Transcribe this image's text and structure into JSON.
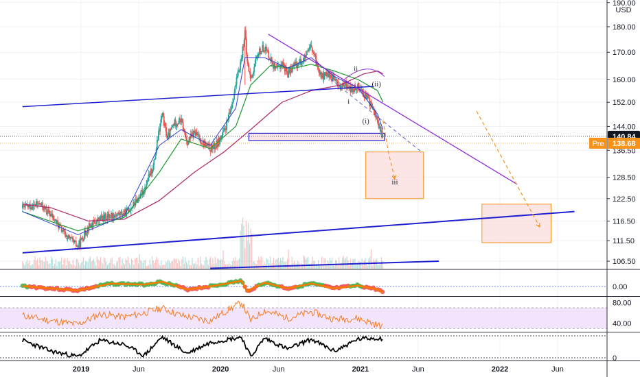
{
  "currency_label": "USD",
  "colors": {
    "up": "#26a69a",
    "down": "#ef5350",
    "trendline": "#1f1fcf",
    "downtrend": "#8e2bd6",
    "projection": "#f7931a",
    "box_fill": "#fbdcdc",
    "box_border": "#f7931a",
    "ema_fast": "#2f3fd0",
    "ema_mid": "#2e9e3e",
    "ema_slow": "#b0306e",
    "rsi": "#f57c1f",
    "rsi_band": "#f1e4fb",
    "current_price_bg": "#131722",
    "pre_bg": "#f7931a"
  },
  "chart_data": [
    {
      "type": "line",
      "panel": "price",
      "y_scale": "log",
      "ylim": [
        103,
        190
      ],
      "y_ticks": [
        "190.00",
        "180.00",
        "170.00",
        "160.00",
        "152.00",
        "144.00",
        "136.50",
        "128.50",
        "122.50",
        "116.50",
        "111.50",
        "106.50"
      ],
      "x_ticks": [
        "2019",
        "Jun",
        "2020",
        "Jun",
        "2021",
        "Jun",
        "2022",
        "Jun"
      ],
      "price_path": [
        [
          "2018-08-01",
          120
        ],
        [
          "2018-09-15",
          121
        ],
        [
          "2018-10-15",
          118
        ],
        [
          "2018-11-20",
          113
        ],
        [
          "2018-12-24",
          110
        ],
        [
          "2019-01-20",
          115
        ],
        [
          "2019-02-20",
          117
        ],
        [
          "2019-03-20",
          118
        ],
        [
          "2019-04-25",
          118.5
        ],
        [
          "2019-05-20",
          121
        ],
        [
          "2019-06-15",
          125
        ],
        [
          "2019-07-10",
          132
        ],
        [
          "2019-07-25",
          143
        ],
        [
          "2019-08-01",
          148
        ],
        [
          "2019-08-15",
          140
        ],
        [
          "2019-09-01",
          145
        ],
        [
          "2019-09-20",
          146
        ],
        [
          "2019-10-05",
          139
        ],
        [
          "2019-10-25",
          142
        ],
        [
          "2019-11-15",
          139
        ],
        [
          "2019-12-05",
          137
        ],
        [
          "2019-12-20",
          138
        ],
        [
          "2020-01-10",
          142
        ],
        [
          "2020-01-25",
          148
        ],
        [
          "2020-02-10",
          158
        ],
        [
          "2020-02-25",
          168
        ],
        [
          "2020-03-05",
          178
        ],
        [
          "2020-03-10",
          167
        ],
        [
          "2020-03-20",
          160
        ],
        [
          "2020-04-10",
          170
        ],
        [
          "2020-04-25",
          172
        ],
        [
          "2020-05-10",
          168
        ],
        [
          "2020-05-25",
          163
        ],
        [
          "2020-06-10",
          166
        ],
        [
          "2020-06-25",
          162
        ],
        [
          "2020-07-10",
          165
        ],
        [
          "2020-07-25",
          166
        ],
        [
          "2020-08-10",
          168
        ],
        [
          "2020-08-25",
          172
        ],
        [
          "2020-09-10",
          165
        ],
        [
          "2020-09-25",
          161
        ],
        [
          "2020-10-10",
          162
        ],
        [
          "2020-10-25",
          160
        ],
        [
          "2020-11-10",
          157
        ],
        [
          "2020-11-25",
          158
        ],
        [
          "2020-12-10",
          156
        ],
        [
          "2020-12-25",
          158
        ],
        [
          "2021-01-10",
          155
        ],
        [
          "2021-01-25",
          152
        ],
        [
          "2021-02-05",
          149
        ],
        [
          "2021-02-15",
          146
        ],
        [
          "2021-02-22",
          142
        ],
        [
          "2021-03-01",
          140.84
        ]
      ],
      "ema_fast": [
        [
          "2018-08-01",
          119
        ],
        [
          "2018-12-24",
          113
        ],
        [
          "2019-04-25",
          118
        ],
        [
          "2019-07-25",
          138
        ],
        [
          "2019-09-20",
          143
        ],
        [
          "2019-12-05",
          138
        ],
        [
          "2020-02-10",
          150
        ],
        [
          "2020-03-05",
          168
        ],
        [
          "2020-04-25",
          168
        ],
        [
          "2020-06-25",
          164
        ],
        [
          "2020-08-25",
          168
        ],
        [
          "2020-10-25",
          161
        ],
        [
          "2020-12-25",
          157
        ],
        [
          "2021-02-15",
          148
        ],
        [
          "2021-03-01",
          143
        ]
      ],
      "ema_mid": [
        [
          "2018-08-01",
          119
        ],
        [
          "2018-12-24",
          114
        ],
        [
          "2019-04-25",
          117.5
        ],
        [
          "2019-07-25",
          130
        ],
        [
          "2019-09-20",
          140
        ],
        [
          "2019-12-05",
          137
        ],
        [
          "2020-02-10",
          144
        ],
        [
          "2020-03-20",
          158
        ],
        [
          "2020-05-10",
          165
        ],
        [
          "2020-07-10",
          164
        ],
        [
          "2020-08-25",
          165.5
        ],
        [
          "2020-10-25",
          163
        ],
        [
          "2020-12-25",
          160
        ],
        [
          "2021-02-15",
          156
        ],
        [
          "2021-03-01",
          152
        ]
      ],
      "ema_slow": [
        [
          "2018-08-01",
          121
        ],
        [
          "2018-10-15",
          120
        ],
        [
          "2019-01-20",
          116.5
        ],
        [
          "2019-04-25",
          117
        ],
        [
          "2019-07-25",
          122
        ],
        [
          "2019-10-25",
          130
        ],
        [
          "2020-01-10",
          136
        ],
        [
          "2020-03-20",
          143
        ],
        [
          "2020-06-10",
          152
        ],
        [
          "2020-08-25",
          156
        ],
        [
          "2020-11-10",
          158
        ],
        [
          "2021-01-10",
          162
        ],
        [
          "2021-02-15",
          163
        ],
        [
          "2021-03-01",
          162
        ]
      ],
      "lines": [
        {
          "name": "support-upper",
          "points": [
            [
              "2018-08-01",
              150.5
            ],
            [
              "2021-02-05",
              157.5
            ]
          ]
        },
        {
          "name": "support-lower",
          "points": [
            [
              "2018-08-01",
              108.5
            ],
            [
              "2022-07-15",
              119
            ]
          ]
        },
        {
          "name": "volume-baseline",
          "points": [
            [
              "2019-12-05",
              104.8
            ],
            [
              "2021-07-25",
              106.5
            ]
          ]
        },
        {
          "name": "downtrend",
          "points": [
            [
              "2020-05-05",
              177
            ],
            [
              "2022-02-15",
              126.5
            ]
          ]
        },
        {
          "name": "dashed-channel",
          "points": [
            [
              "2020-10-15",
              160
            ],
            [
              "2021-06-10",
              136
            ]
          ]
        }
      ],
      "zones": [
        {
          "name": "support-zone",
          "from": "2020-03-15",
          "to": "2021-03-05",
          "low": 139.5,
          "high": 141.8
        },
        {
          "name": "target-zone-1",
          "from": "2021-01-15",
          "to": "2021-06-15",
          "low": 122.5,
          "high": 136
        },
        {
          "name": "target-zone-2",
          "from": "2021-11-15",
          "to": "2022-05-15",
          "low": 111,
          "high": 121
        }
      ],
      "projections": [
        {
          "name": "wave-iii-path",
          "points": [
            [
              "2021-03-01",
              146
            ],
            [
              "2021-03-15",
              136
            ],
            [
              "2021-04-01",
              128
            ]
          ]
        },
        {
          "name": "long-projection",
          "points": [
            [
              "2021-11-01",
              149
            ],
            [
              "2022-04-15",
              115
            ]
          ]
        }
      ],
      "wave_labels": [
        {
          "text": "ii",
          "date": "2020-12-20",
          "price": 163
        },
        {
          "text": "(ii)",
          "date": "2021-02-12",
          "price": 157.5
        },
        {
          "text": "i",
          "date": "2020-12-01",
          "price": 151.5
        },
        {
          "text": "(i)",
          "date": "2021-01-15",
          "price": 145
        },
        {
          "text": "iii",
          "date": "2021-04-01",
          "price": 126.5
        }
      ],
      "price_tags": [
        {
          "name": "current",
          "label": "140.84",
          "value": 140.84
        },
        {
          "name": "premarket",
          "prefix": "Pre",
          "label": "138.68",
          "value": 138.68
        }
      ]
    },
    {
      "type": "line",
      "panel": "oscillator",
      "y_ticks": [
        "0.00"
      ],
      "ylim": [
        -1,
        1
      ],
      "values": [
        [
          "2018-08-01",
          0.05
        ],
        [
          "2018-10-15",
          -0.2
        ],
        [
          "2018-12-24",
          -0.4
        ],
        [
          "2019-03-20",
          0.3
        ],
        [
          "2019-06-15",
          0.2
        ],
        [
          "2019-08-01",
          0.5
        ],
        [
          "2019-10-05",
          -0.3
        ],
        [
          "2019-12-20",
          0.1
        ],
        [
          "2020-02-25",
          0.6
        ],
        [
          "2020-03-10",
          -0.5
        ],
        [
          "2020-04-25",
          0.4
        ],
        [
          "2020-06-25",
          -0.2
        ],
        [
          "2020-08-25",
          0.3
        ],
        [
          "2020-10-25",
          -0.2
        ],
        [
          "2020-12-25",
          0.1
        ],
        [
          "2021-02-15",
          -0.3
        ],
        [
          "2021-03-01",
          -0.6
        ]
      ]
    },
    {
      "type": "line",
      "panel": "rsi",
      "y_ticks": [
        "80.00",
        "40.00"
      ],
      "ylim": [
        25,
        90
      ],
      "values": [
        [
          "2018-08-01",
          55
        ],
        [
          "2018-10-15",
          45
        ],
        [
          "2018-12-24",
          38
        ],
        [
          "2019-02-20",
          58
        ],
        [
          "2019-04-25",
          52
        ],
        [
          "2019-06-15",
          60
        ],
        [
          "2019-08-01",
          70
        ],
        [
          "2019-09-20",
          55
        ],
        [
          "2019-12-05",
          45
        ],
        [
          "2020-01-25",
          68
        ],
        [
          "2020-02-25",
          80
        ],
        [
          "2020-03-20",
          45
        ],
        [
          "2020-04-25",
          65
        ],
        [
          "2020-06-25",
          50
        ],
        [
          "2020-08-25",
          62
        ],
        [
          "2020-10-25",
          48
        ],
        [
          "2020-12-25",
          50
        ],
        [
          "2021-01-25",
          42
        ],
        [
          "2021-03-01",
          33
        ]
      ]
    },
    {
      "type": "line",
      "panel": "bottom-indicator",
      "y_ticks": [
        "0"
      ],
      "ylim": [
        0,
        100
      ],
      "values": [
        [
          "2018-08-01",
          80
        ],
        [
          "2018-10-15",
          30
        ],
        [
          "2018-12-24",
          5
        ],
        [
          "2019-02-20",
          80
        ],
        [
          "2019-04-25",
          60
        ],
        [
          "2019-06-15",
          10
        ],
        [
          "2019-08-01",
          95
        ],
        [
          "2019-10-05",
          20
        ],
        [
          "2019-12-05",
          70
        ],
        [
          "2020-02-25",
          95
        ],
        [
          "2020-03-20",
          5
        ],
        [
          "2020-04-25",
          90
        ],
        [
          "2020-06-25",
          40
        ],
        [
          "2020-08-25",
          85
        ],
        [
          "2020-10-25",
          30
        ],
        [
          "2020-12-25",
          85
        ],
        [
          "2021-02-05",
          90
        ],
        [
          "2021-03-01",
          88
        ]
      ]
    }
  ]
}
